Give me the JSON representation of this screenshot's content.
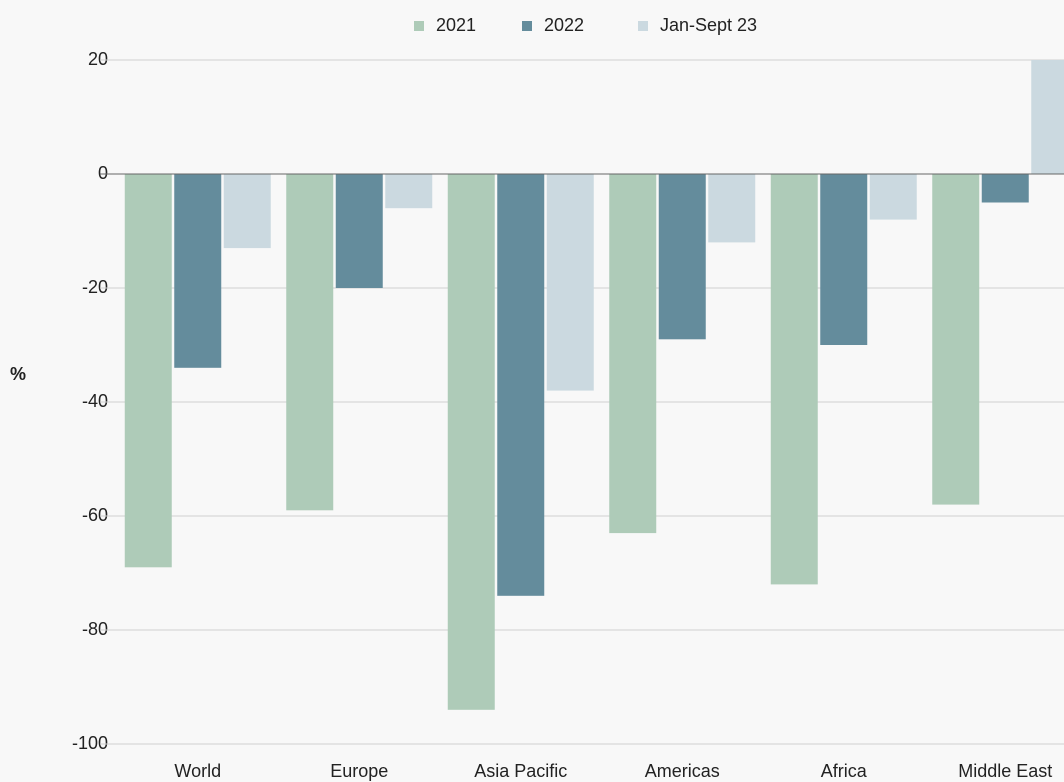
{
  "chart_data": {
    "type": "bar",
    "y_label": "%",
    "categories": [
      "World",
      "Europe",
      "Asia Pacific",
      "Americas",
      "Africa",
      "Middle East"
    ],
    "series": [
      {
        "name": "2021",
        "color": "#aecbb8",
        "values": [
          -69,
          -59,
          -94,
          -63,
          -72,
          -58
        ]
      },
      {
        "name": "2022",
        "color": "#648c9c",
        "values": [
          -34,
          -20,
          -74,
          -29,
          -30,
          -5
        ]
      },
      {
        "name": "Jan-Sept 23",
        "color": "#cbd9e0",
        "values": [
          -13,
          -6,
          -38,
          -12,
          -8,
          20
        ]
      }
    ],
    "ylim": [
      -100,
      20
    ],
    "yticks": [
      -100,
      -80,
      -60,
      -40,
      -20,
      0,
      20
    ],
    "grid": true,
    "legend": "top"
  }
}
